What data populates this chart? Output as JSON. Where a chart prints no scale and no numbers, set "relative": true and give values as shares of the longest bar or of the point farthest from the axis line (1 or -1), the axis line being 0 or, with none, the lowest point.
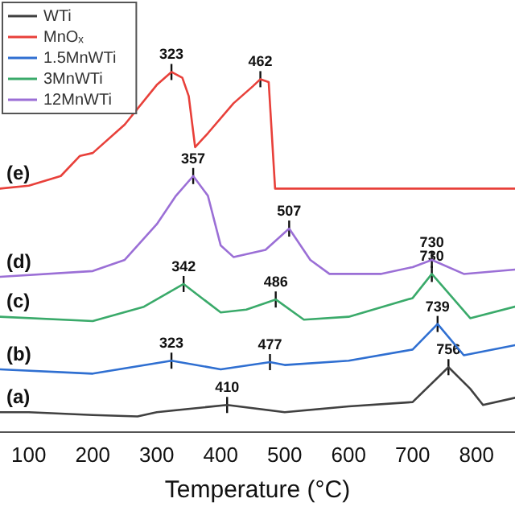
{
  "chart_data": {
    "type": "line",
    "xlabel": "Temperature (°C)",
    "relative": true,
    "xlim": [
      55,
      860
    ],
    "xticks": [
      100,
      200,
      300,
      400,
      500,
      600,
      700,
      800
    ],
    "legend": "top left",
    "grid": false,
    "marker": "none",
    "series": [
      {
        "name": "WTi",
        "color": "#404040",
        "x": [
          55,
          100,
          200,
          270,
          300,
          410,
          500,
          600,
          700,
          756,
          790,
          810,
          860
        ],
        "values": [
          0.055,
          0.055,
          0.047,
          0.043,
          0.055,
          0.075,
          0.055,
          0.071,
          0.083,
          0.18,
          0.12,
          0.075,
          0.095
        ]
      },
      {
        "name": "MnOₓ",
        "color": "#e8403a",
        "x": [
          55,
          100,
          150,
          180,
          200,
          250,
          300,
          323,
          340,
          350,
          360,
          380,
          420,
          450,
          462,
          475,
          485,
          600,
          860
        ],
        "values": [
          0.676,
          0.684,
          0.711,
          0.767,
          0.775,
          0.854,
          0.964,
          1,
          0.984,
          0.933,
          0.791,
          0.83,
          0.913,
          0.96,
          0.98,
          0.972,
          0.676,
          0.676,
          0.676
        ]
      },
      {
        "name": "1.5MnWTi",
        "color": "#2f6fd1",
        "x": [
          55,
          200,
          323,
          400,
          477,
          500,
          600,
          700,
          739,
          780,
          860
        ],
        "values": [
          0.174,
          0.162,
          0.198,
          0.174,
          0.194,
          0.186,
          0.198,
          0.229,
          0.3,
          0.213,
          0.241
        ]
      },
      {
        "name": "3MnWTi",
        "color": "#3aaa6a",
        "x": [
          55,
          200,
          280,
          342,
          400,
          440,
          486,
          530,
          600,
          700,
          730,
          790,
          860
        ],
        "values": [
          0.32,
          0.308,
          0.348,
          0.411,
          0.332,
          0.34,
          0.368,
          0.312,
          0.32,
          0.372,
          0.439,
          0.316,
          0.348
        ]
      },
      {
        "name": "12MnWTi",
        "color": "#9b6fd6",
        "x": [
          55,
          200,
          250,
          300,
          330,
          357,
          380,
          400,
          420,
          470,
          507,
          540,
          570,
          650,
          700,
          730,
          780,
          860
        ],
        "values": [
          0.431,
          0.447,
          0.478,
          0.577,
          0.656,
          0.711,
          0.656,
          0.518,
          0.486,
          0.506,
          0.565,
          0.478,
          0.439,
          0.439,
          0.458,
          0.478,
          0.439,
          0.451
        ]
      }
    ],
    "annotations": [
      "(a)",
      "(e)",
      "(b)",
      "(c)",
      "(d)",
      {
        "text": "323",
        "x": 323,
        "y": 1
      },
      {
        "text": "462",
        "x": 462,
        "y": 0.98
      },
      {
        "text": "357",
        "x": 357,
        "y": 0.711
      },
      {
        "text": "507",
        "x": 507,
        "y": 0.565
      },
      {
        "text": "730",
        "x": 730,
        "y": 0.478
      },
      {
        "text": "342",
        "x": 342,
        "y": 0.411
      },
      {
        "text": "486",
        "x": 486,
        "y": 0.368
      },
      {
        "text": "730",
        "x": 730,
        "y": 0.439
      },
      {
        "text": "323",
        "x": 323,
        "y": 0.198
      },
      {
        "text": "477",
        "x": 477,
        "y": 0.194
      },
      {
        "text": "739",
        "x": 739,
        "y": 0.3
      },
      {
        "text": "410",
        "x": 410,
        "y": 0.075
      },
      {
        "text": "756",
        "x": 756,
        "y": 0.18
      }
    ]
  }
}
